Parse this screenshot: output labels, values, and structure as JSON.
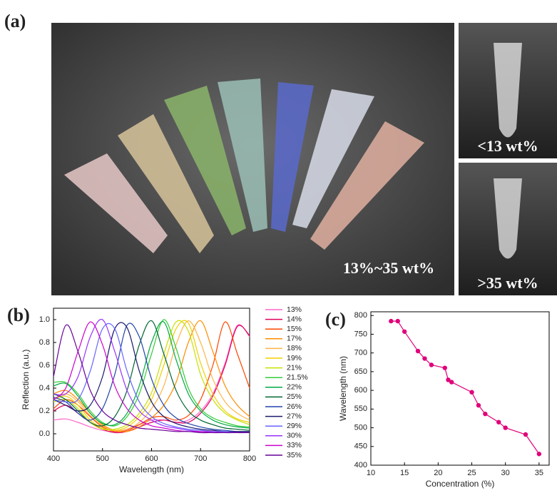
{
  "photo": {
    "label": "(a)",
    "captions": [
      "13%~35 wt%",
      "<13 wt%",
      ">35 wt%"
    ]
  },
  "chart_data": [
    {
      "type": "line",
      "panel_label": "(b)",
      "xlabel": "Wavelength (nm)",
      "ylabel": "Reflection (a.u.)",
      "x": [
        400,
        425,
        450,
        475,
        500,
        525,
        550,
        575,
        600,
        625,
        650,
        675,
        700,
        725,
        750,
        775,
        800
      ],
      "xlim": [
        400,
        800
      ],
      "xticks": [
        400,
        500,
        600,
        700,
        800
      ],
      "ylim": [
        -0.15,
        1.1
      ],
      "yticks": [
        {
          "value": 0,
          "label": "0.0"
        },
        0.2,
        0.4,
        0.6,
        0.8,
        {
          "value": 1,
          "label": "1.0"
        }
      ],
      "series": [
        {
          "name": "13%",
          "color": "#ff66cc",
          "values": [
            0.12,
            0.13,
            0.1,
            0.06,
            0.03,
            0.02,
            0.04,
            0.08,
            0.12,
            0.12,
            0.1,
            0.12,
            0.2,
            0.35,
            0.62,
            0.95,
            0.85
          ]
        },
        {
          "name": "14%",
          "color": "#e0005a",
          "values": [
            0.2,
            0.25,
            0.18,
            0.1,
            0.04,
            0.01,
            0.02,
            0.06,
            0.1,
            0.12,
            0.1,
            0.1,
            0.18,
            0.33,
            0.6,
            0.94,
            0.86
          ]
        },
        {
          "name": "15%",
          "color": "#ff4500",
          "values": [
            0.22,
            0.3,
            0.25,
            0.15,
            0.06,
            0.02,
            0.03,
            0.08,
            0.14,
            0.15,
            0.12,
            0.16,
            0.3,
            0.6,
            0.98,
            0.7,
            0.4
          ]
        },
        {
          "name": "17%",
          "color": "#ff8c00",
          "values": [
            0.35,
            0.38,
            0.3,
            0.18,
            0.08,
            0.03,
            0.02,
            0.06,
            0.14,
            0.25,
            0.45,
            0.8,
            0.99,
            0.72,
            0.42,
            0.25,
            0.15
          ]
        },
        {
          "name": "18%",
          "color": "#ffb347",
          "values": [
            0.3,
            0.35,
            0.28,
            0.16,
            0.07,
            0.03,
            0.04,
            0.1,
            0.22,
            0.42,
            0.78,
            0.99,
            0.8,
            0.48,
            0.28,
            0.18,
            0.12
          ]
        },
        {
          "name": "19%",
          "color": "#f0d000",
          "values": [
            0.3,
            0.33,
            0.25,
            0.12,
            0.05,
            0.03,
            0.06,
            0.15,
            0.3,
            0.6,
            0.92,
            0.97,
            0.62,
            0.35,
            0.2,
            0.13,
            0.1
          ]
        },
        {
          "name": "21%",
          "color": "#c8e000",
          "values": [
            0.28,
            0.3,
            0.22,
            0.1,
            0.04,
            0.04,
            0.08,
            0.18,
            0.36,
            0.7,
            0.98,
            0.9,
            0.52,
            0.3,
            0.18,
            0.12,
            0.08
          ]
        },
        {
          "name": "21.5%",
          "color": "#33cc33",
          "values": [
            0.45,
            0.45,
            0.35,
            0.2,
            0.1,
            0.07,
            0.15,
            0.35,
            0.7,
            1.0,
            0.75,
            0.4,
            0.22,
            0.14,
            0.1,
            0.07,
            0.06
          ]
        },
        {
          "name": "22%",
          "color": "#00aa44",
          "values": [
            0.42,
            0.44,
            0.33,
            0.18,
            0.09,
            0.08,
            0.18,
            0.42,
            0.8,
            0.98,
            0.65,
            0.35,
            0.2,
            0.12,
            0.08,
            0.06,
            0.05
          ]
        },
        {
          "name": "25%",
          "color": "#006633",
          "values": [
            0.35,
            0.3,
            0.2,
            0.1,
            0.07,
            0.15,
            0.38,
            0.78,
            0.99,
            0.7,
            0.38,
            0.2,
            0.12,
            0.08,
            0.05,
            0.04,
            0.03
          ]
        },
        {
          "name": "26%",
          "color": "#2244aa",
          "values": [
            0.32,
            0.28,
            0.18,
            0.12,
            0.22,
            0.52,
            0.95,
            0.85,
            0.48,
            0.25,
            0.14,
            0.09,
            0.06,
            0.04,
            0.03,
            0.02,
            0.02
          ]
        },
        {
          "name": "27%",
          "color": "#1a1a6e",
          "values": [
            0.3,
            0.25,
            0.2,
            0.25,
            0.5,
            0.92,
            0.93,
            0.55,
            0.28,
            0.15,
            0.09,
            0.06,
            0.04,
            0.03,
            0.02,
            0.02,
            0.02
          ]
        },
        {
          "name": "29%",
          "color": "#6666ff",
          "values": [
            0.3,
            0.28,
            0.3,
            0.55,
            0.92,
            0.92,
            0.55,
            0.28,
            0.15,
            0.09,
            0.06,
            0.04,
            0.03,
            0.02,
            0.02,
            0.01,
            0.01
          ]
        },
        {
          "name": "30%",
          "color": "#9933ff",
          "values": [
            0.35,
            0.35,
            0.5,
            0.85,
            1.0,
            0.72,
            0.38,
            0.2,
            0.12,
            0.07,
            0.05,
            0.03,
            0.02,
            0.02,
            0.01,
            0.01,
            0.01
          ]
        },
        {
          "name": "33%",
          "color": "#cc00cc",
          "values": [
            0.3,
            0.4,
            0.72,
            0.98,
            0.78,
            0.42,
            0.22,
            0.12,
            0.07,
            0.05,
            0.03,
            0.02,
            0.02,
            0.01,
            0.01,
            0.01,
            0.01
          ]
        },
        {
          "name": "35%",
          "color": "#660099",
          "values": [
            0.5,
            0.95,
            0.72,
            0.38,
            0.2,
            0.12,
            0.08,
            0.05,
            0.04,
            0.03,
            0.02,
            0.02,
            0.01,
            0.01,
            0.01,
            0.01,
            0.01
          ]
        }
      ]
    },
    {
      "type": "line",
      "panel_label": "(c)",
      "xlabel": "Concentration (%)",
      "ylabel": "Wavelength (nm)",
      "x": [
        13,
        14,
        15,
        17,
        18,
        19,
        21,
        21.5,
        22,
        25,
        26,
        27,
        29,
        30,
        33,
        35
      ],
      "values": [
        785,
        785,
        757,
        705,
        685,
        668,
        660,
        628,
        622,
        595,
        560,
        537,
        515,
        500,
        482,
        430
      ],
      "color": "#e0007a",
      "markers": true,
      "xlim": [
        10,
        36.5
      ],
      "xticks": [
        10,
        15,
        20,
        25,
        30,
        35
      ],
      "ylim": [
        400,
        810
      ],
      "yticks": [
        400,
        450,
        500,
        550,
        600,
        650,
        700,
        750,
        800
      ]
    }
  ]
}
